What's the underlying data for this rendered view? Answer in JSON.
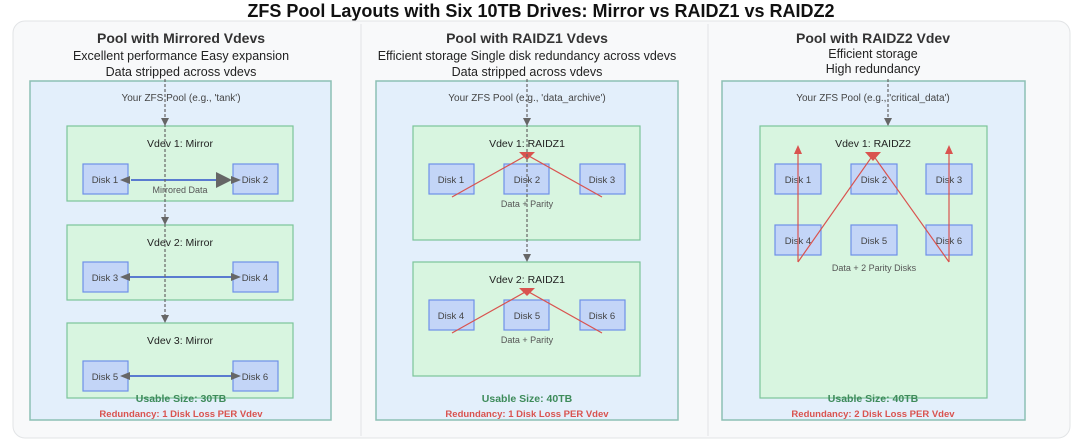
{
  "title": "ZFS Pool Layouts with Six 10TB Drives: Mirror vs RAIDZ1 vs RAIDZ2",
  "colors": {
    "pool_fill": "#e3effb",
    "vdev_fill": "#d8f5e0",
    "disk_fill": "#c3d5f7",
    "usable": "#3d8b5a",
    "redundancy": "#d9534f"
  },
  "mirror": {
    "heading": "Pool with Mirrored Vdevs",
    "line1": "Excellent performance Easy expansion",
    "line2": "Data stripped across vdevs",
    "pool_label": "Your ZFS Pool (e.g., 'tank')",
    "vdevs": [
      {
        "label": "Vdev 1: Mirror",
        "disks": [
          "Disk 1",
          "Disk 2"
        ],
        "note": "Mirrored Data"
      },
      {
        "label": "Vdev 2: Mirror",
        "disks": [
          "Disk 3",
          "Disk 4"
        ]
      },
      {
        "label": "Vdev 3: Mirror",
        "disks": [
          "Disk 5",
          "Disk 6"
        ]
      }
    ],
    "usable": "Usable Size: 30TB",
    "redundancy": "Redundancy: 1 Disk Loss PER Vdev"
  },
  "raidz1": {
    "heading": "Pool with RAIDZ1 Vdevs",
    "line1": "Efficient storage  Single disk redundancy across vdevs",
    "line2": "Data stripped across vdevs",
    "pool_label": "Your ZFS Pool (e.g., 'data_archive')",
    "vdevs": [
      {
        "label": "Vdev 1: RAIDZ1",
        "disks": [
          "Disk 1",
          "Disk 2",
          "Disk 3"
        ],
        "note": "Data + Parity"
      },
      {
        "label": "Vdev 2: RAIDZ1",
        "disks": [
          "Disk 4",
          "Disk 5",
          "Disk 6"
        ],
        "note": "Data + Parity"
      }
    ],
    "usable": "Usable Size: 40TB",
    "redundancy": "Redundancy: 1 Disk Loss PER Vdev"
  },
  "raidz2": {
    "heading": "Pool with RAIDZ2 Vdev",
    "line1": "Efficient storage",
    "line2": "High redundancy",
    "pool_label": "Your ZFS Pool (e.g., 'critical_data')",
    "vdevs": [
      {
        "label": "Vdev 1: RAIDZ2",
        "disks": [
          "Disk 1",
          "Disk 2",
          "Disk 3",
          "Disk 4",
          "Disk 5",
          "Disk 6"
        ],
        "note": "Data + 2 Parity Disks"
      }
    ],
    "usable": "Usable Size: 40TB",
    "redundancy": "Redundancy: 2 Disk Loss PER Vdev"
  }
}
